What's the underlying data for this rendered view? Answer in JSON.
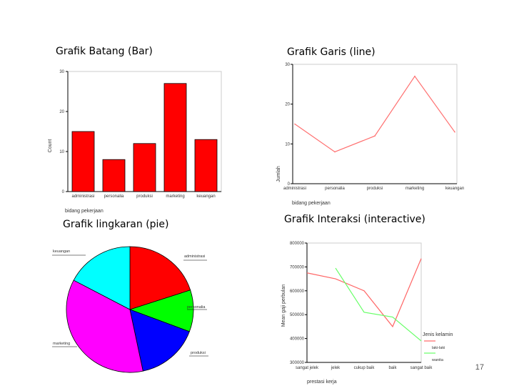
{
  "headings": {
    "bar": "Grafik Batang (Bar)",
    "line": "Grafik Garis (line)",
    "pie": "Grafik lingkaran (pie)",
    "interactive": "Grafik Interaksi (interactive)"
  },
  "page_number": "17",
  "chart_data": [
    {
      "type": "bar",
      "categories": [
        "administrasi",
        "personalia",
        "produksi",
        "marketing",
        "keuangan"
      ],
      "values": [
        15,
        8,
        12,
        27,
        13
      ],
      "xlabel": "bidang pekerjaan",
      "ylabel": "Count",
      "ylim": [
        0,
        30
      ],
      "yticks": [
        0,
        10,
        20,
        30
      ],
      "color": "#ff0000",
      "grid": false
    },
    {
      "type": "line",
      "categories": [
        "administrasi",
        "personalia",
        "produksi",
        "marketing",
        "keuangan"
      ],
      "values": [
        15,
        8,
        12,
        27,
        13
      ],
      "xlabel": "bidang pekerjaan",
      "ylabel": "Jumlah",
      "ylim": [
        0,
        30
      ],
      "yticks": [
        0,
        10,
        20,
        30
      ],
      "color": "#ff7070",
      "grid": false
    },
    {
      "type": "pie",
      "slices": [
        {
          "label": "administrasi",
          "value": 20,
          "color": "#ff0000"
        },
        {
          "label": "personalia",
          "value": 10.7,
          "color": "#00ff00"
        },
        {
          "label": "produksi",
          "value": 16,
          "color": "#0000ff"
        },
        {
          "label": "marketing",
          "value": 36,
          "color": "#ff00ff"
        },
        {
          "label": "keuangan",
          "value": 17.3,
          "color": "#00ffff"
        }
      ]
    },
    {
      "type": "line",
      "categories": [
        "sangat jelek",
        "jelek",
        "cukup baik",
        "baik",
        "sangat baik"
      ],
      "series": [
        {
          "name": "laki-laki",
          "values": [
            675000,
            650000,
            600000,
            450000,
            735000
          ],
          "color": "#ff6666"
        },
        {
          "name": "wanita",
          "values": [
            null,
            695000,
            510000,
            490000,
            390000
          ],
          "color": "#66ff66"
        }
      ],
      "xlabel": "prestasi kerja",
      "ylabel": "Mean gaji perbulan",
      "ylim": [
        300000,
        800000
      ],
      "yticks": [
        300000,
        400000,
        500000,
        600000,
        700000,
        800000
      ],
      "legend_title": "Jenis kelamin",
      "legend_position": "right",
      "grid": false
    }
  ]
}
